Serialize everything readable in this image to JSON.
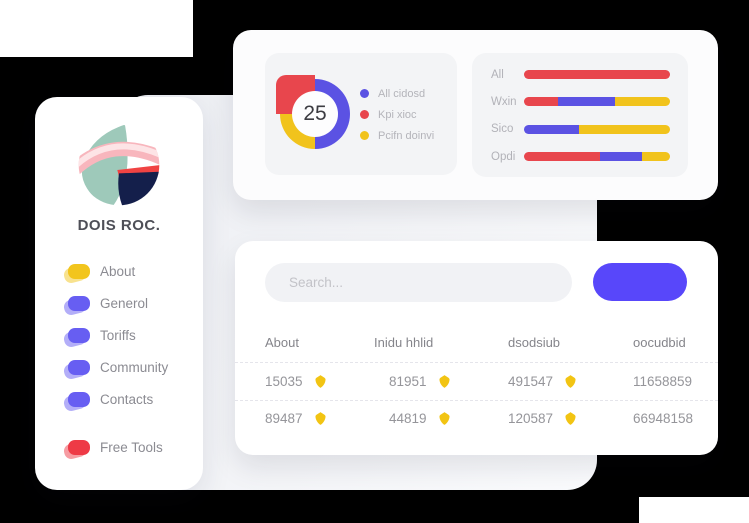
{
  "colors": {
    "chart_blue": "#5b52e3",
    "chart_red": "#e8464d",
    "chart_yellow": "#f1c31c",
    "menu_purple": "#675ef2",
    "menu_yellow": "#f2c51d",
    "menu_red": "#ee3a46",
    "button_blue": "#5847fa",
    "badge_yellow": "#f2c413"
  },
  "sidebar": {
    "brand": "DOIS ROC.",
    "items": [
      {
        "label": "About",
        "color": "menu_yellow",
        "separated": false
      },
      {
        "label": "Generol",
        "color": "menu_purple",
        "separated": false
      },
      {
        "label": "Toriffs",
        "color": "menu_purple",
        "separated": false
      },
      {
        "label": "Community",
        "color": "menu_purple",
        "separated": false
      },
      {
        "label": "Contacts",
        "color": "menu_purple",
        "separated": false
      },
      {
        "label": "Free Tools",
        "color": "menu_red",
        "separated": true
      }
    ]
  },
  "donut": {
    "center_value": "25",
    "segments": [
      {
        "color": "chart_blue",
        "pct": 50
      },
      {
        "color": "chart_yellow",
        "pct": 25
      },
      {
        "color": "chart_red",
        "pct": 25
      }
    ],
    "legend": [
      {
        "label": "All cidosd",
        "color": "chart_blue"
      },
      {
        "label": "Kpi xioc",
        "color": "chart_red"
      },
      {
        "label": "Pcifn doinvi",
        "color": "chart_yellow"
      }
    ]
  },
  "bars": {
    "rows": [
      {
        "label": "All",
        "segments": [
          {
            "color": "chart_red",
            "pct": 100
          }
        ]
      },
      {
        "label": "Wxin",
        "segments": [
          {
            "color": "chart_red",
            "pct": 23
          },
          {
            "color": "chart_blue",
            "pct": 39
          },
          {
            "color": "chart_yellow",
            "pct": 38
          }
        ]
      },
      {
        "label": "Sico",
        "segments": [
          {
            "color": "chart_blue",
            "pct": 38
          },
          {
            "color": "chart_yellow",
            "pct": 62
          }
        ]
      },
      {
        "label": "Opdi",
        "segments": [
          {
            "color": "chart_red",
            "pct": 52
          },
          {
            "color": "chart_blue",
            "pct": 29
          },
          {
            "color": "chart_yellow",
            "pct": 19
          }
        ]
      }
    ]
  },
  "chart_data": [
    {
      "type": "pie",
      "labels": [
        "All cidosd",
        "Kpi xioc",
        "Pcifn doinvi"
      ],
      "values": [
        50,
        25,
        25
      ],
      "center_label": "25",
      "legend_position": "right"
    },
    {
      "type": "bar",
      "orientation": "horizontal",
      "stacked": true,
      "categories": [
        "All",
        "Wxin",
        "Sico",
        "Opdi"
      ],
      "series": [
        {
          "name": "Kpi xioc",
          "values": [
            100,
            23,
            0,
            52
          ]
        },
        {
          "name": "All cidosd",
          "values": [
            0,
            39,
            38,
            29
          ]
        },
        {
          "name": "Pcifn doinvi",
          "values": [
            0,
            38,
            62,
            19
          ]
        }
      ],
      "xlim": [
        0,
        100
      ]
    }
  ],
  "search": {
    "placeholder": "Search..."
  },
  "table": {
    "headers": [
      "About",
      "Inidu hhlid",
      "dsodsiub",
      "oocudbid"
    ],
    "rows": [
      [
        {
          "value": "15035",
          "badge": true
        },
        {
          "value": "81951",
          "badge": true
        },
        {
          "value": "491547",
          "badge": true
        },
        {
          "value": "11658859",
          "badge": false
        }
      ],
      [
        {
          "value": "89487",
          "badge": true
        },
        {
          "value": "44819",
          "badge": true
        },
        {
          "value": "120587",
          "badge": true
        },
        {
          "value": "66948158",
          "badge": false
        }
      ]
    ]
  }
}
